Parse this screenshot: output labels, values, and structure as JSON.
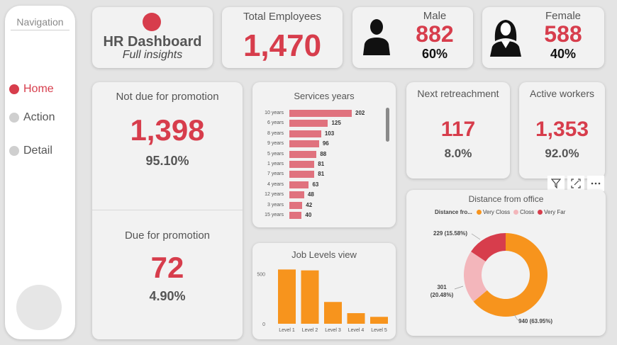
{
  "nav": {
    "title": "Navigation",
    "items": [
      {
        "label": "Home",
        "active": true
      },
      {
        "label": "Action",
        "active": false
      },
      {
        "label": "Detail",
        "active": false
      }
    ]
  },
  "header": {
    "title": "HR Dashboard",
    "subtitle": "Full insights",
    "accent": "#d73d4c"
  },
  "total": {
    "title": "Total Employees",
    "value": "1,470"
  },
  "male": {
    "title": "Male",
    "value": "882",
    "pct": "60%"
  },
  "female": {
    "title": "Female",
    "value": "588",
    "pct": "40%"
  },
  "not_due": {
    "title": "Not due for promotion",
    "value": "1,398",
    "pct": "95.10%"
  },
  "due": {
    "title": "Due for promotion",
    "value": "72",
    "pct": "4.90%"
  },
  "next_ret": {
    "title": "Next retreachment",
    "value": "117",
    "pct": "8.0%"
  },
  "active": {
    "title": "Active workers",
    "value": "1,353",
    "pct": "92.0%"
  },
  "toolbar": {
    "icons": [
      "filter-icon",
      "focus-mode-icon",
      "more-options-icon"
    ]
  },
  "chart_data": [
    {
      "type": "bar",
      "orientation": "horizontal",
      "title": "Services years",
      "categories": [
        "10 years",
        "6 years",
        "8 years",
        "9 years",
        "5 years",
        "1 years",
        "7 years",
        "4 years",
        "12 years",
        "3 years",
        "15 years"
      ],
      "values": [
        202,
        125,
        103,
        96,
        88,
        81,
        81,
        63,
        48,
        42,
        40
      ],
      "color": "#e0727e"
    },
    {
      "type": "bar",
      "title": "Job Levels view",
      "categories": [
        "Level 1",
        "Level 2",
        "Level 3",
        "Level 4",
        "Level 5"
      ],
      "values": [
        543,
        534,
        218,
        106,
        69
      ],
      "yticks": [
        "0",
        "500"
      ],
      "ylim": [
        0,
        560
      ],
      "color": "#f7941d"
    },
    {
      "type": "pie",
      "title": "Distance from office",
      "legend_title": "Distance fro...",
      "series": [
        {
          "name": "Very Closs",
          "value": 940,
          "label": "940 (63.95%)",
          "color": "#f7941d"
        },
        {
          "name": "Closs",
          "value": 301,
          "label": "301 (20.48%)",
          "color": "#f3b6bb"
        },
        {
          "name": "Very Far",
          "value": 229,
          "label": "229 (15.58%)",
          "color": "#d73d4c"
        }
      ]
    }
  ]
}
